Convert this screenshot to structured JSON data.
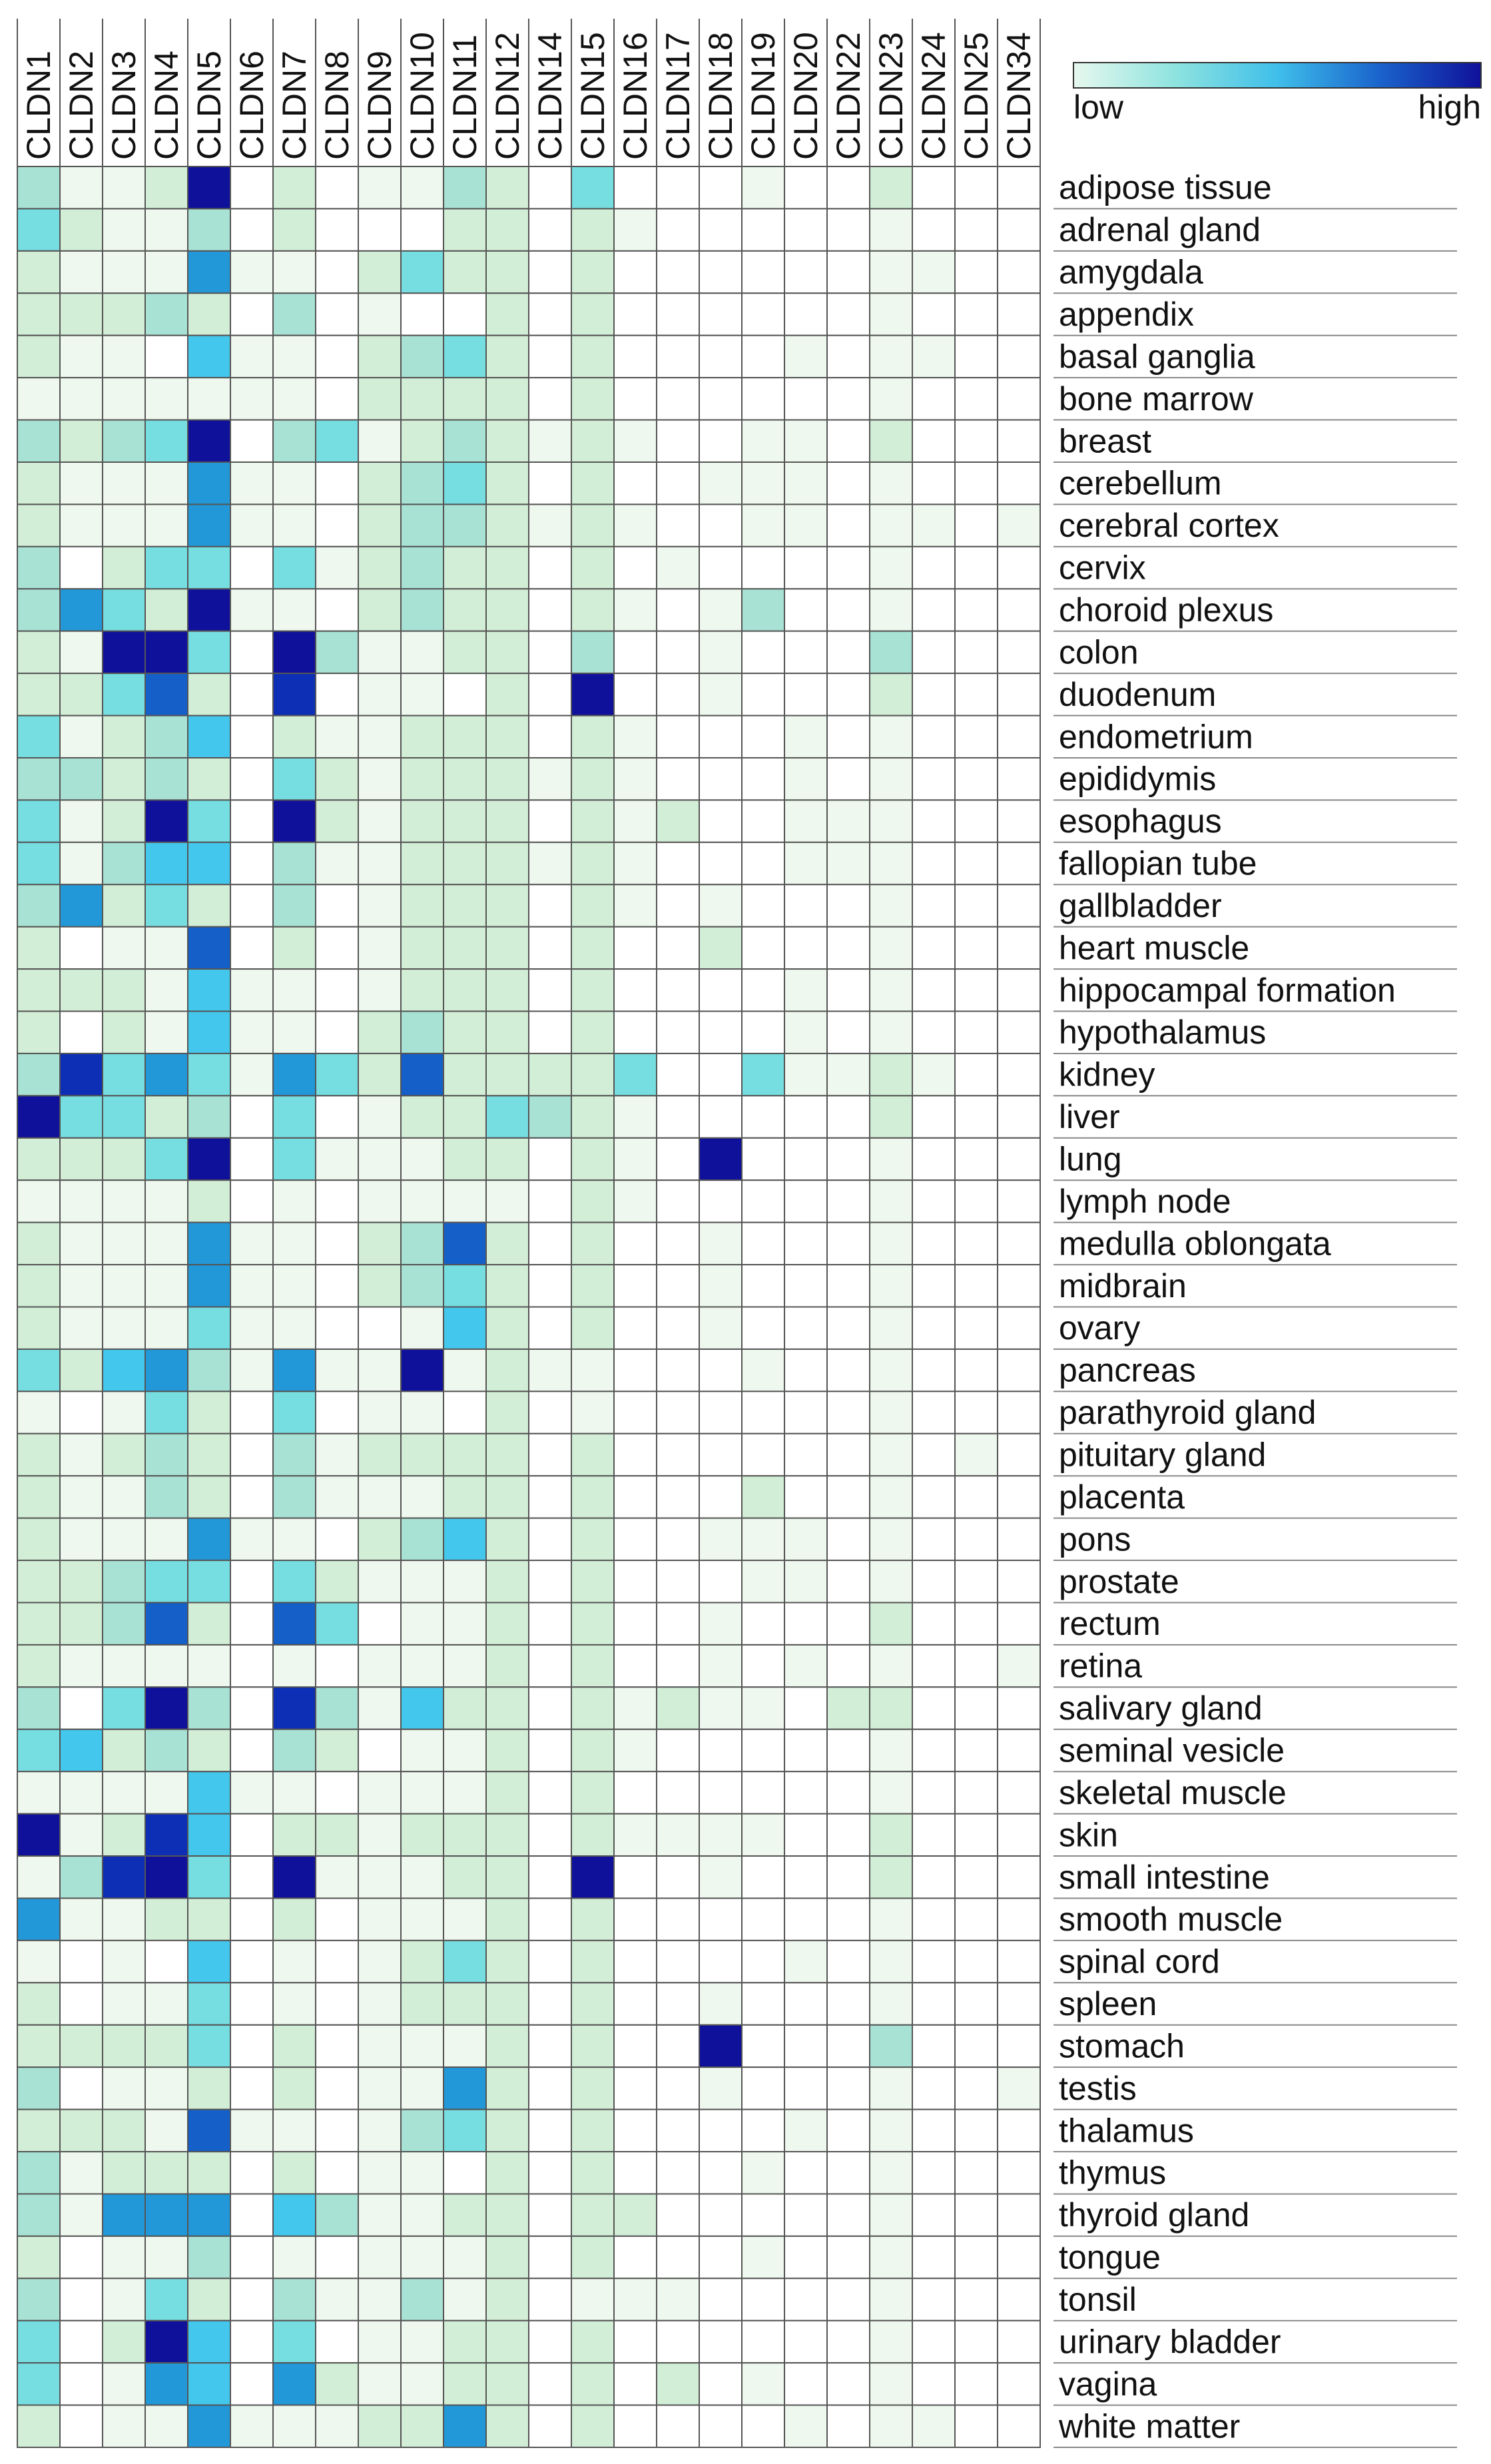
{
  "chart_data": {
    "type": "heatmap",
    "title": "",
    "xlabel": "",
    "ylabel": "",
    "columns": [
      "CLDN1",
      "CLDN2",
      "CLDN3",
      "CLDN4",
      "CLDN5",
      "CLDN6",
      "CLDN7",
      "CLDN8",
      "CLDN9",
      "CLDN10",
      "CLDN11",
      "CLDN12",
      "CLDN14",
      "CLDN15",
      "CLDN16",
      "CLDN17",
      "CLDN18",
      "CLDN19",
      "CLDN20",
      "CLDN22",
      "CLDN23",
      "CLDN24",
      "CLDN25",
      "CLDN34"
    ],
    "rows": [
      "adipose tissue",
      "adrenal gland",
      "amygdala",
      "appendix",
      "basal ganglia",
      "bone marrow",
      "breast",
      "cerebellum",
      "cerebral cortex",
      "cervix",
      "choroid plexus",
      "colon",
      "duodenum",
      "endometrium",
      "epididymis",
      "esophagus",
      "fallopian tube",
      "gallbladder",
      "heart muscle",
      "hippocampal formation",
      "hypothalamus",
      "kidney",
      "liver",
      "lung",
      "lymph node",
      "medulla oblongata",
      "midbrain",
      "ovary",
      "pancreas",
      "parathyroid gland",
      "pituitary gland",
      "placenta",
      "pons",
      "prostate",
      "rectum",
      "retina",
      "salivary gland",
      "seminal vesicle",
      "skeletal muscle",
      "skin",
      "small intestine",
      "smooth muscle",
      "spinal cord",
      "spleen",
      "stomach",
      "testis",
      "thalamus",
      "thymus",
      "thyroid gland",
      "tongue",
      "tonsil",
      "urinary bladder",
      "vagina",
      "white matter"
    ],
    "values": [
      [
        3,
        1,
        1,
        2,
        9,
        0,
        2,
        0,
        1,
        1,
        3,
        2,
        0,
        4,
        0,
        0,
        0,
        1,
        0,
        0,
        2,
        0,
        0,
        0
      ],
      [
        4,
        2,
        1,
        1,
        3,
        0,
        2,
        0,
        0,
        0,
        2,
        2,
        0,
        2,
        1,
        0,
        0,
        0,
        0,
        0,
        1,
        0,
        0,
        0
      ],
      [
        2,
        1,
        1,
        1,
        6,
        1,
        1,
        0,
        2,
        4,
        2,
        2,
        0,
        2,
        0,
        0,
        0,
        0,
        0,
        0,
        1,
        1,
        0,
        0
      ],
      [
        2,
        2,
        2,
        3,
        2,
        0,
        3,
        0,
        1,
        0,
        0,
        2,
        0,
        2,
        0,
        0,
        0,
        0,
        0,
        0,
        1,
        0,
        0,
        0
      ],
      [
        2,
        1,
        1,
        0,
        5,
        1,
        1,
        0,
        2,
        3,
        4,
        2,
        0,
        2,
        0,
        0,
        0,
        0,
        1,
        0,
        1,
        1,
        0,
        0
      ],
      [
        1,
        1,
        1,
        1,
        1,
        1,
        1,
        0,
        2,
        2,
        2,
        2,
        0,
        2,
        0,
        0,
        0,
        0,
        0,
        0,
        1,
        0,
        0,
        0
      ],
      [
        3,
        2,
        3,
        4,
        9,
        0,
        3,
        4,
        1,
        2,
        3,
        2,
        1,
        2,
        1,
        0,
        0,
        1,
        1,
        0,
        2,
        0,
        0,
        0
      ],
      [
        2,
        1,
        1,
        1,
        6,
        1,
        1,
        0,
        2,
        3,
        4,
        2,
        0,
        2,
        0,
        0,
        1,
        1,
        1,
        0,
        1,
        0,
        0,
        0
      ],
      [
        2,
        1,
        1,
        1,
        6,
        1,
        1,
        0,
        2,
        3,
        3,
        2,
        1,
        2,
        1,
        0,
        0,
        1,
        1,
        0,
        1,
        1,
        0,
        1
      ],
      [
        3,
        0,
        2,
        4,
        4,
        0,
        4,
        1,
        2,
        3,
        2,
        2,
        0,
        2,
        0,
        1,
        0,
        0,
        0,
        0,
        1,
        0,
        0,
        0
      ],
      [
        3,
        6,
        4,
        2,
        9,
        1,
        1,
        0,
        2,
        3,
        2,
        2,
        0,
        2,
        1,
        0,
        1,
        3,
        0,
        0,
        1,
        0,
        0,
        0
      ],
      [
        2,
        1,
        9,
        9,
        4,
        0,
        9,
        3,
        1,
        1,
        2,
        2,
        0,
        3,
        0,
        0,
        1,
        0,
        0,
        0,
        3,
        0,
        0,
        0
      ],
      [
        2,
        2,
        4,
        7,
        2,
        0,
        8,
        0,
        1,
        1,
        0,
        2,
        0,
        9,
        0,
        0,
        1,
        0,
        0,
        0,
        2,
        0,
        0,
        0
      ],
      [
        4,
        1,
        2,
        3,
        5,
        0,
        2,
        1,
        1,
        2,
        2,
        2,
        0,
        2,
        1,
        0,
        0,
        0,
        1,
        0,
        1,
        0,
        0,
        0
      ],
      [
        3,
        3,
        2,
        3,
        2,
        0,
        4,
        2,
        1,
        2,
        2,
        2,
        1,
        2,
        1,
        0,
        0,
        0,
        1,
        0,
        1,
        0,
        0,
        0
      ],
      [
        4,
        1,
        2,
        9,
        4,
        0,
        9,
        2,
        1,
        2,
        2,
        2,
        0,
        2,
        1,
        2,
        0,
        0,
        1,
        1,
        1,
        0,
        0,
        0
      ],
      [
        4,
        1,
        3,
        5,
        5,
        0,
        3,
        1,
        1,
        2,
        2,
        2,
        1,
        2,
        1,
        0,
        0,
        0,
        1,
        1,
        1,
        0,
        0,
        0
      ],
      [
        3,
        6,
        2,
        4,
        2,
        0,
        3,
        0,
        1,
        2,
        2,
        2,
        0,
        2,
        1,
        0,
        1,
        0,
        0,
        0,
        1,
        0,
        0,
        0
      ],
      [
        2,
        0,
        1,
        1,
        7,
        0,
        2,
        0,
        1,
        2,
        2,
        2,
        0,
        2,
        0,
        0,
        2,
        0,
        0,
        0,
        1,
        0,
        0,
        0
      ],
      [
        2,
        2,
        2,
        1,
        5,
        1,
        1,
        0,
        1,
        2,
        2,
        2,
        0,
        2,
        0,
        0,
        0,
        0,
        1,
        0,
        1,
        0,
        0,
        0
      ],
      [
        2,
        0,
        2,
        1,
        5,
        1,
        1,
        0,
        2,
        3,
        2,
        2,
        0,
        2,
        0,
        0,
        0,
        0,
        1,
        0,
        1,
        0,
        0,
        0
      ],
      [
        3,
        8,
        4,
        6,
        4,
        1,
        6,
        4,
        2,
        7,
        2,
        2,
        2,
        2,
        4,
        0,
        0,
        4,
        1,
        1,
        2,
        1,
        0,
        0
      ],
      [
        9,
        4,
        4,
        2,
        3,
        0,
        4,
        0,
        1,
        2,
        2,
        4,
        3,
        2,
        1,
        0,
        0,
        0,
        0,
        0,
        2,
        0,
        0,
        0
      ],
      [
        2,
        2,
        2,
        4,
        9,
        0,
        4,
        1,
        1,
        1,
        2,
        2,
        0,
        2,
        1,
        0,
        9,
        0,
        0,
        0,
        1,
        0,
        0,
        0
      ],
      [
        1,
        1,
        1,
        1,
        2,
        0,
        1,
        0,
        1,
        1,
        1,
        1,
        0,
        2,
        1,
        0,
        0,
        0,
        0,
        0,
        1,
        0,
        0,
        0
      ],
      [
        2,
        1,
        1,
        1,
        6,
        1,
        1,
        0,
        2,
        3,
        7,
        2,
        0,
        2,
        0,
        0,
        1,
        0,
        0,
        0,
        1,
        0,
        0,
        0
      ],
      [
        2,
        1,
        1,
        1,
        6,
        1,
        1,
        0,
        2,
        3,
        4,
        2,
        0,
        2,
        0,
        0,
        1,
        0,
        0,
        0,
        1,
        0,
        0,
        0
      ],
      [
        2,
        1,
        1,
        1,
        4,
        1,
        1,
        0,
        0,
        1,
        5,
        2,
        0,
        2,
        0,
        0,
        1,
        0,
        0,
        0,
        1,
        0,
        0,
        0
      ],
      [
        4,
        2,
        5,
        6,
        3,
        1,
        6,
        1,
        1,
        9,
        1,
        2,
        1,
        1,
        0,
        0,
        0,
        1,
        0,
        0,
        1,
        0,
        0,
        0
      ],
      [
        1,
        0,
        1,
        4,
        2,
        0,
        4,
        0,
        1,
        1,
        0,
        2,
        0,
        1,
        0,
        0,
        0,
        0,
        0,
        0,
        1,
        0,
        0,
        0
      ],
      [
        2,
        1,
        2,
        3,
        2,
        0,
        3,
        1,
        2,
        2,
        2,
        2,
        0,
        2,
        0,
        0,
        0,
        0,
        0,
        0,
        1,
        0,
        1,
        0
      ],
      [
        2,
        1,
        1,
        3,
        2,
        0,
        3,
        1,
        1,
        1,
        2,
        2,
        0,
        2,
        0,
        0,
        0,
        2,
        0,
        0,
        1,
        0,
        0,
        0
      ],
      [
        2,
        1,
        1,
        1,
        6,
        1,
        1,
        0,
        2,
        3,
        5,
        2,
        0,
        2,
        0,
        0,
        1,
        1,
        1,
        0,
        1,
        0,
        0,
        0
      ],
      [
        2,
        2,
        3,
        4,
        4,
        0,
        4,
        2,
        1,
        1,
        1,
        2,
        0,
        2,
        0,
        0,
        0,
        1,
        1,
        0,
        1,
        0,
        0,
        0
      ],
      [
        2,
        2,
        3,
        7,
        2,
        0,
        7,
        4,
        0,
        1,
        1,
        2,
        0,
        2,
        0,
        0,
        1,
        0,
        0,
        0,
        2,
        0,
        0,
        0
      ],
      [
        2,
        1,
        1,
        1,
        1,
        0,
        1,
        0,
        1,
        1,
        1,
        2,
        0,
        2,
        0,
        0,
        1,
        0,
        1,
        0,
        1,
        0,
        0,
        1
      ],
      [
        3,
        0,
        4,
        9,
        3,
        0,
        8,
        3,
        1,
        5,
        2,
        2,
        0,
        2,
        1,
        2,
        1,
        1,
        0,
        2,
        2,
        0,
        0,
        0
      ],
      [
        4,
        5,
        2,
        3,
        2,
        0,
        3,
        2,
        0,
        1,
        1,
        2,
        0,
        2,
        1,
        0,
        0,
        0,
        0,
        0,
        1,
        0,
        0,
        0
      ],
      [
        1,
        1,
        1,
        1,
        5,
        1,
        1,
        0,
        1,
        1,
        1,
        2,
        0,
        2,
        0,
        0,
        0,
        0,
        0,
        0,
        1,
        0,
        0,
        0
      ],
      [
        9,
        1,
        2,
        8,
        5,
        0,
        2,
        2,
        1,
        2,
        2,
        2,
        0,
        2,
        1,
        1,
        1,
        1,
        0,
        0,
        2,
        0,
        0,
        0
      ],
      [
        1,
        3,
        8,
        9,
        4,
        0,
        9,
        1,
        1,
        1,
        2,
        2,
        0,
        9,
        0,
        0,
        1,
        0,
        0,
        0,
        2,
        0,
        0,
        0
      ],
      [
        6,
        1,
        1,
        2,
        2,
        0,
        2,
        0,
        1,
        1,
        1,
        2,
        0,
        2,
        0,
        0,
        0,
        0,
        0,
        0,
        1,
        0,
        0,
        0
      ],
      [
        1,
        0,
        1,
        0,
        5,
        0,
        1,
        0,
        1,
        2,
        4,
        2,
        0,
        2,
        0,
        0,
        0,
        0,
        1,
        0,
        1,
        0,
        0,
        0
      ],
      [
        2,
        0,
        1,
        1,
        4,
        0,
        1,
        0,
        1,
        2,
        2,
        2,
        0,
        2,
        0,
        0,
        1,
        0,
        0,
        0,
        1,
        0,
        0,
        0
      ],
      [
        2,
        2,
        2,
        2,
        4,
        0,
        2,
        0,
        1,
        1,
        1,
        2,
        0,
        2,
        0,
        0,
        9,
        0,
        0,
        0,
        3,
        0,
        0,
        0
      ],
      [
        3,
        0,
        1,
        1,
        2,
        0,
        2,
        0,
        1,
        1,
        6,
        2,
        0,
        2,
        0,
        0,
        1,
        0,
        0,
        0,
        1,
        0,
        0,
        1
      ],
      [
        2,
        2,
        2,
        1,
        7,
        1,
        1,
        0,
        1,
        3,
        4,
        2,
        0,
        2,
        0,
        0,
        0,
        0,
        1,
        0,
        1,
        0,
        0,
        0
      ],
      [
        3,
        1,
        2,
        2,
        2,
        0,
        2,
        0,
        1,
        1,
        0,
        2,
        0,
        2,
        0,
        0,
        0,
        1,
        0,
        0,
        1,
        0,
        0,
        0
      ],
      [
        3,
        1,
        6,
        6,
        6,
        0,
        5,
        3,
        1,
        1,
        2,
        2,
        0,
        2,
        2,
        0,
        0,
        0,
        0,
        0,
        1,
        0,
        0,
        0
      ],
      [
        2,
        0,
        1,
        1,
        3,
        0,
        1,
        0,
        1,
        1,
        1,
        2,
        0,
        2,
        0,
        0,
        0,
        1,
        0,
        0,
        1,
        0,
        0,
        0
      ],
      [
        3,
        0,
        1,
        4,
        2,
        0,
        3,
        1,
        1,
        3,
        1,
        2,
        0,
        1,
        1,
        1,
        0,
        0,
        0,
        0,
        1,
        0,
        0,
        0
      ],
      [
        4,
        0,
        2,
        9,
        5,
        0,
        4,
        0,
        1,
        1,
        2,
        2,
        0,
        2,
        0,
        0,
        0,
        0,
        0,
        0,
        1,
        0,
        0,
        0
      ],
      [
        4,
        0,
        1,
        6,
        5,
        0,
        6,
        2,
        1,
        1,
        2,
        2,
        0,
        2,
        0,
        2,
        0,
        1,
        0,
        0,
        1,
        0,
        0,
        0
      ],
      [
        2,
        0,
        1,
        1,
        6,
        1,
        1,
        1,
        2,
        2,
        6,
        2,
        0,
        2,
        0,
        0,
        0,
        0,
        1,
        0,
        1,
        1,
        0,
        0
      ]
    ],
    "scale_max": 9,
    "colormap": [
      "#ffffff",
      "#eef8ee",
      "#d2eed6",
      "#a8e2d4",
      "#76dde1",
      "#44c7ec",
      "#2298d8",
      "#145fc8",
      "#0c2fb6",
      "#10119a"
    ],
    "legend": {
      "low_label": "low",
      "high_label": "high",
      "placement": "top-right"
    }
  }
}
